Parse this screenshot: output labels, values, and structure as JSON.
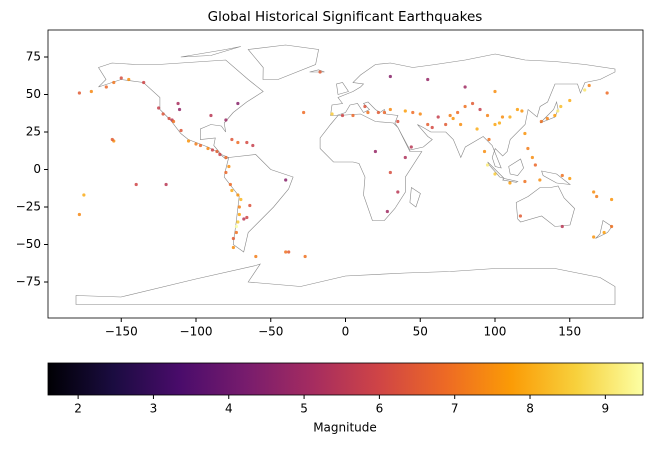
{
  "chart_data": {
    "type": "scatter",
    "title": "Global Historical Significant Earthquakes",
    "x": [
      -150,
      -155,
      -160,
      -170,
      -178,
      175,
      -145,
      -135,
      -125,
      -122,
      -118,
      -116,
      -115,
      -110,
      -105,
      -100,
      -97,
      -92,
      -89,
      -86,
      -84,
      -80,
      -112,
      -111,
      -90,
      -80,
      -72,
      -155,
      -156,
      -72,
      -66,
      -62,
      -76,
      -78,
      -80,
      -77,
      -76,
      -72,
      -70,
      -71,
      -71,
      -72,
      -73,
      -73,
      -75,
      -64,
      -66,
      -68,
      -75,
      -40,
      -60,
      -27,
      -38,
      13,
      15,
      22,
      26,
      30,
      40,
      45,
      50,
      55,
      58,
      62,
      70,
      75,
      80,
      85,
      90,
      95,
      100,
      103,
      105,
      110,
      115,
      118,
      120,
      122,
      125,
      127,
      120,
      110,
      100,
      95,
      93,
      96,
      88,
      77,
      72,
      67,
      -9,
      -2,
      5,
      35,
      44,
      40,
      30,
      35,
      28,
      20,
      140,
      142,
      144,
      131,
      135,
      150,
      160,
      163,
      150,
      145,
      130,
      166,
      168,
      178,
      -175,
      -178,
      178,
      173,
      166,
      145,
      117,
      -140,
      -120,
      -28,
      -17,
      30,
      55,
      100,
      80,
      -40
    ],
    "y": [
      61,
      58,
      55,
      52,
      51,
      51,
      60,
      58,
      41,
      37,
      34,
      33,
      32,
      26,
      19,
      17,
      16,
      14,
      13,
      12,
      10,
      8,
      44,
      40,
      36,
      33,
      44,
      19,
      20,
      18,
      18,
      16,
      20,
      2,
      -2,
      -10,
      -14,
      -17,
      -20,
      -25,
      -30,
      -35,
      -38,
      -42,
      -46,
      -24,
      -32,
      -33,
      -52,
      -7,
      -58,
      -58,
      -55,
      42,
      38,
      38,
      38,
      40,
      39,
      38,
      37,
      30,
      28,
      35,
      36,
      38,
      42,
      44,
      40,
      36,
      30,
      31,
      35,
      35,
      40,
      39,
      24,
      14,
      8,
      3,
      -8,
      -9,
      -3,
      3,
      12,
      20,
      27,
      30,
      34,
      30,
      37,
      36,
      36,
      32,
      15,
      8,
      -2,
      -15,
      -28,
      12,
      36,
      39,
      42,
      32,
      34,
      46,
      53,
      56,
      -6,
      -4,
      -7,
      -15,
      -18,
      -20,
      -17,
      -30,
      -38,
      -42,
      -45,
      -38,
      -31,
      -10,
      -10,
      38,
      65,
      62,
      60,
      52,
      55,
      -55
    ],
    "magnitude": [
      6.2,
      7.1,
      6.8,
      7.4,
      6.5,
      6.9,
      7.5,
      6.0,
      5.8,
      6.4,
      6.2,
      5.5,
      7.0,
      6.4,
      7.6,
      7.2,
      6.8,
      7.4,
      5.9,
      6.6,
      6.0,
      6.8,
      5.2,
      4.7,
      5.5,
      4.9,
      4.5,
      7.5,
      6.5,
      6.9,
      6.1,
      5.8,
      6.4,
      7.5,
      6.8,
      6.9,
      8.0,
      7.6,
      8.2,
      7.3,
      7.9,
      8.5,
      9.5,
      7.0,
      6.5,
      6.3,
      6.0,
      5.5,
      7.5,
      4.5,
      7.2,
      7.0,
      6.5,
      6.3,
      7.0,
      6.5,
      6.8,
      7.4,
      7.8,
      6.9,
      7.4,
      6.6,
      6.1,
      5.8,
      7.2,
      6.9,
      7.0,
      6.5,
      5.8,
      7.3,
      7.9,
      8.0,
      7.5,
      8.0,
      7.8,
      7.6,
      7.6,
      7.2,
      7.5,
      6.8,
      7.0,
      7.8,
      8.5,
      9.1,
      7.5,
      7.0,
      8.0,
      7.5,
      7.6,
      6.5,
      8.5,
      6.0,
      6.8,
      6.2,
      5.5,
      5.3,
      6.2,
      5.5,
      5.0,
      4.8,
      7.8,
      9.1,
      8.3,
      7.0,
      7.3,
      8.0,
      9.0,
      7.3,
      7.7,
      7.0,
      7.5,
      7.5,
      7.2,
      7.6,
      8.0,
      7.4,
      7.0,
      7.8,
      7.6,
      5.5,
      6.5,
      6.0,
      5.5,
      6.9,
      6.5,
      4.5,
      4.8,
      7.5,
      5.0,
      7.0
    ],
    "xlim": [
      -199,
      199
    ],
    "ylim": [
      -99,
      93
    ],
    "xticks": [
      {
        "value": -150,
        "label": "−150"
      },
      {
        "value": -100,
        "label": "−100"
      },
      {
        "value": -50,
        "label": "−50"
      },
      0,
      50,
      100,
      150
    ],
    "yticks": [
      {
        "value": -75,
        "label": "−75"
      },
      {
        "value": -50,
        "label": "−50"
      },
      {
        "value": -25,
        "label": "−25"
      },
      0,
      25,
      50,
      75
    ],
    "colorbar": {
      "label": "Magnitude",
      "clim": [
        1.6,
        9.5
      ],
      "ticks": [
        2,
        3,
        4,
        5,
        6,
        7,
        8,
        9
      ],
      "colormap": [
        "#000004",
        "#1b0c41",
        "#4a0c6b",
        "#781c6d",
        "#a52c60",
        "#cf4446",
        "#ed6925",
        "#fb9b06",
        "#f7d13d",
        "#fcffa4"
      ]
    }
  }
}
